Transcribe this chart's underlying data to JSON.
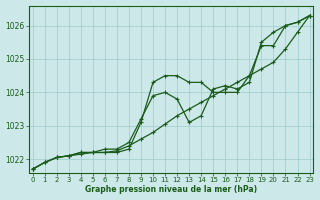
{
  "title": "Graphe pression niveau de la mer (hPa)",
  "background_color": "#cce8e8",
  "grid_color": "#99cccc",
  "line_color": "#1a5c1a",
  "x_ticks": [
    0,
    1,
    2,
    3,
    4,
    5,
    6,
    7,
    8,
    9,
    10,
    11,
    12,
    13,
    14,
    15,
    16,
    17,
    18,
    19,
    20,
    21,
    22,
    23
  ],
  "y_ticks": [
    1022,
    1023,
    1024,
    1025,
    1026
  ],
  "ylim": [
    1021.6,
    1026.6
  ],
  "xlim": [
    -0.3,
    23.3
  ],
  "series1_x": [
    0,
    1,
    2,
    3,
    4,
    5,
    6,
    7,
    8,
    9,
    10,
    11,
    12,
    13,
    14,
    15,
    16,
    17,
    18,
    19,
    20,
    21,
    22,
    23
  ],
  "series1_y": [
    1021.7,
    1021.9,
    1022.05,
    1022.1,
    1022.15,
    1022.2,
    1022.2,
    1022.25,
    1022.4,
    1022.6,
    1022.8,
    1023.05,
    1023.3,
    1023.5,
    1023.7,
    1023.9,
    1024.1,
    1024.3,
    1024.5,
    1024.7,
    1024.9,
    1025.3,
    1025.8,
    1026.3
  ],
  "series2_x": [
    0,
    1,
    2,
    3,
    4,
    5,
    6,
    7,
    8,
    9,
    10,
    11,
    12,
    13,
    14,
    15,
    16,
    17,
    18,
    19,
    20,
    21,
    22,
    23
  ],
  "series2_y": [
    1021.7,
    1021.9,
    1022.05,
    1022.1,
    1022.2,
    1022.2,
    1022.2,
    1022.2,
    1022.3,
    1023.1,
    1024.3,
    1024.5,
    1024.5,
    1024.3,
    1024.3,
    1024.0,
    1024.0,
    1024.0,
    1024.5,
    1025.4,
    1025.4,
    1026.0,
    1026.1,
    1026.3
  ],
  "series3_x": [
    0,
    1,
    2,
    3,
    4,
    5,
    6,
    7,
    8,
    9,
    10,
    11,
    12,
    13,
    14,
    15,
    16,
    17,
    18,
    19,
    20,
    21,
    22,
    23
  ],
  "series3_y": [
    1021.7,
    1021.9,
    1022.05,
    1022.1,
    1022.2,
    1022.2,
    1022.3,
    1022.3,
    1022.5,
    1023.2,
    1023.9,
    1024.0,
    1023.8,
    1023.1,
    1023.3,
    1024.1,
    1024.2,
    1024.1,
    1024.3,
    1025.5,
    1025.8,
    1026.0,
    1026.1,
    1026.3
  ],
  "lw": 0.9,
  "ms": 3.0,
  "tick_fontsize": 5.0,
  "label_fontsize": 5.5
}
